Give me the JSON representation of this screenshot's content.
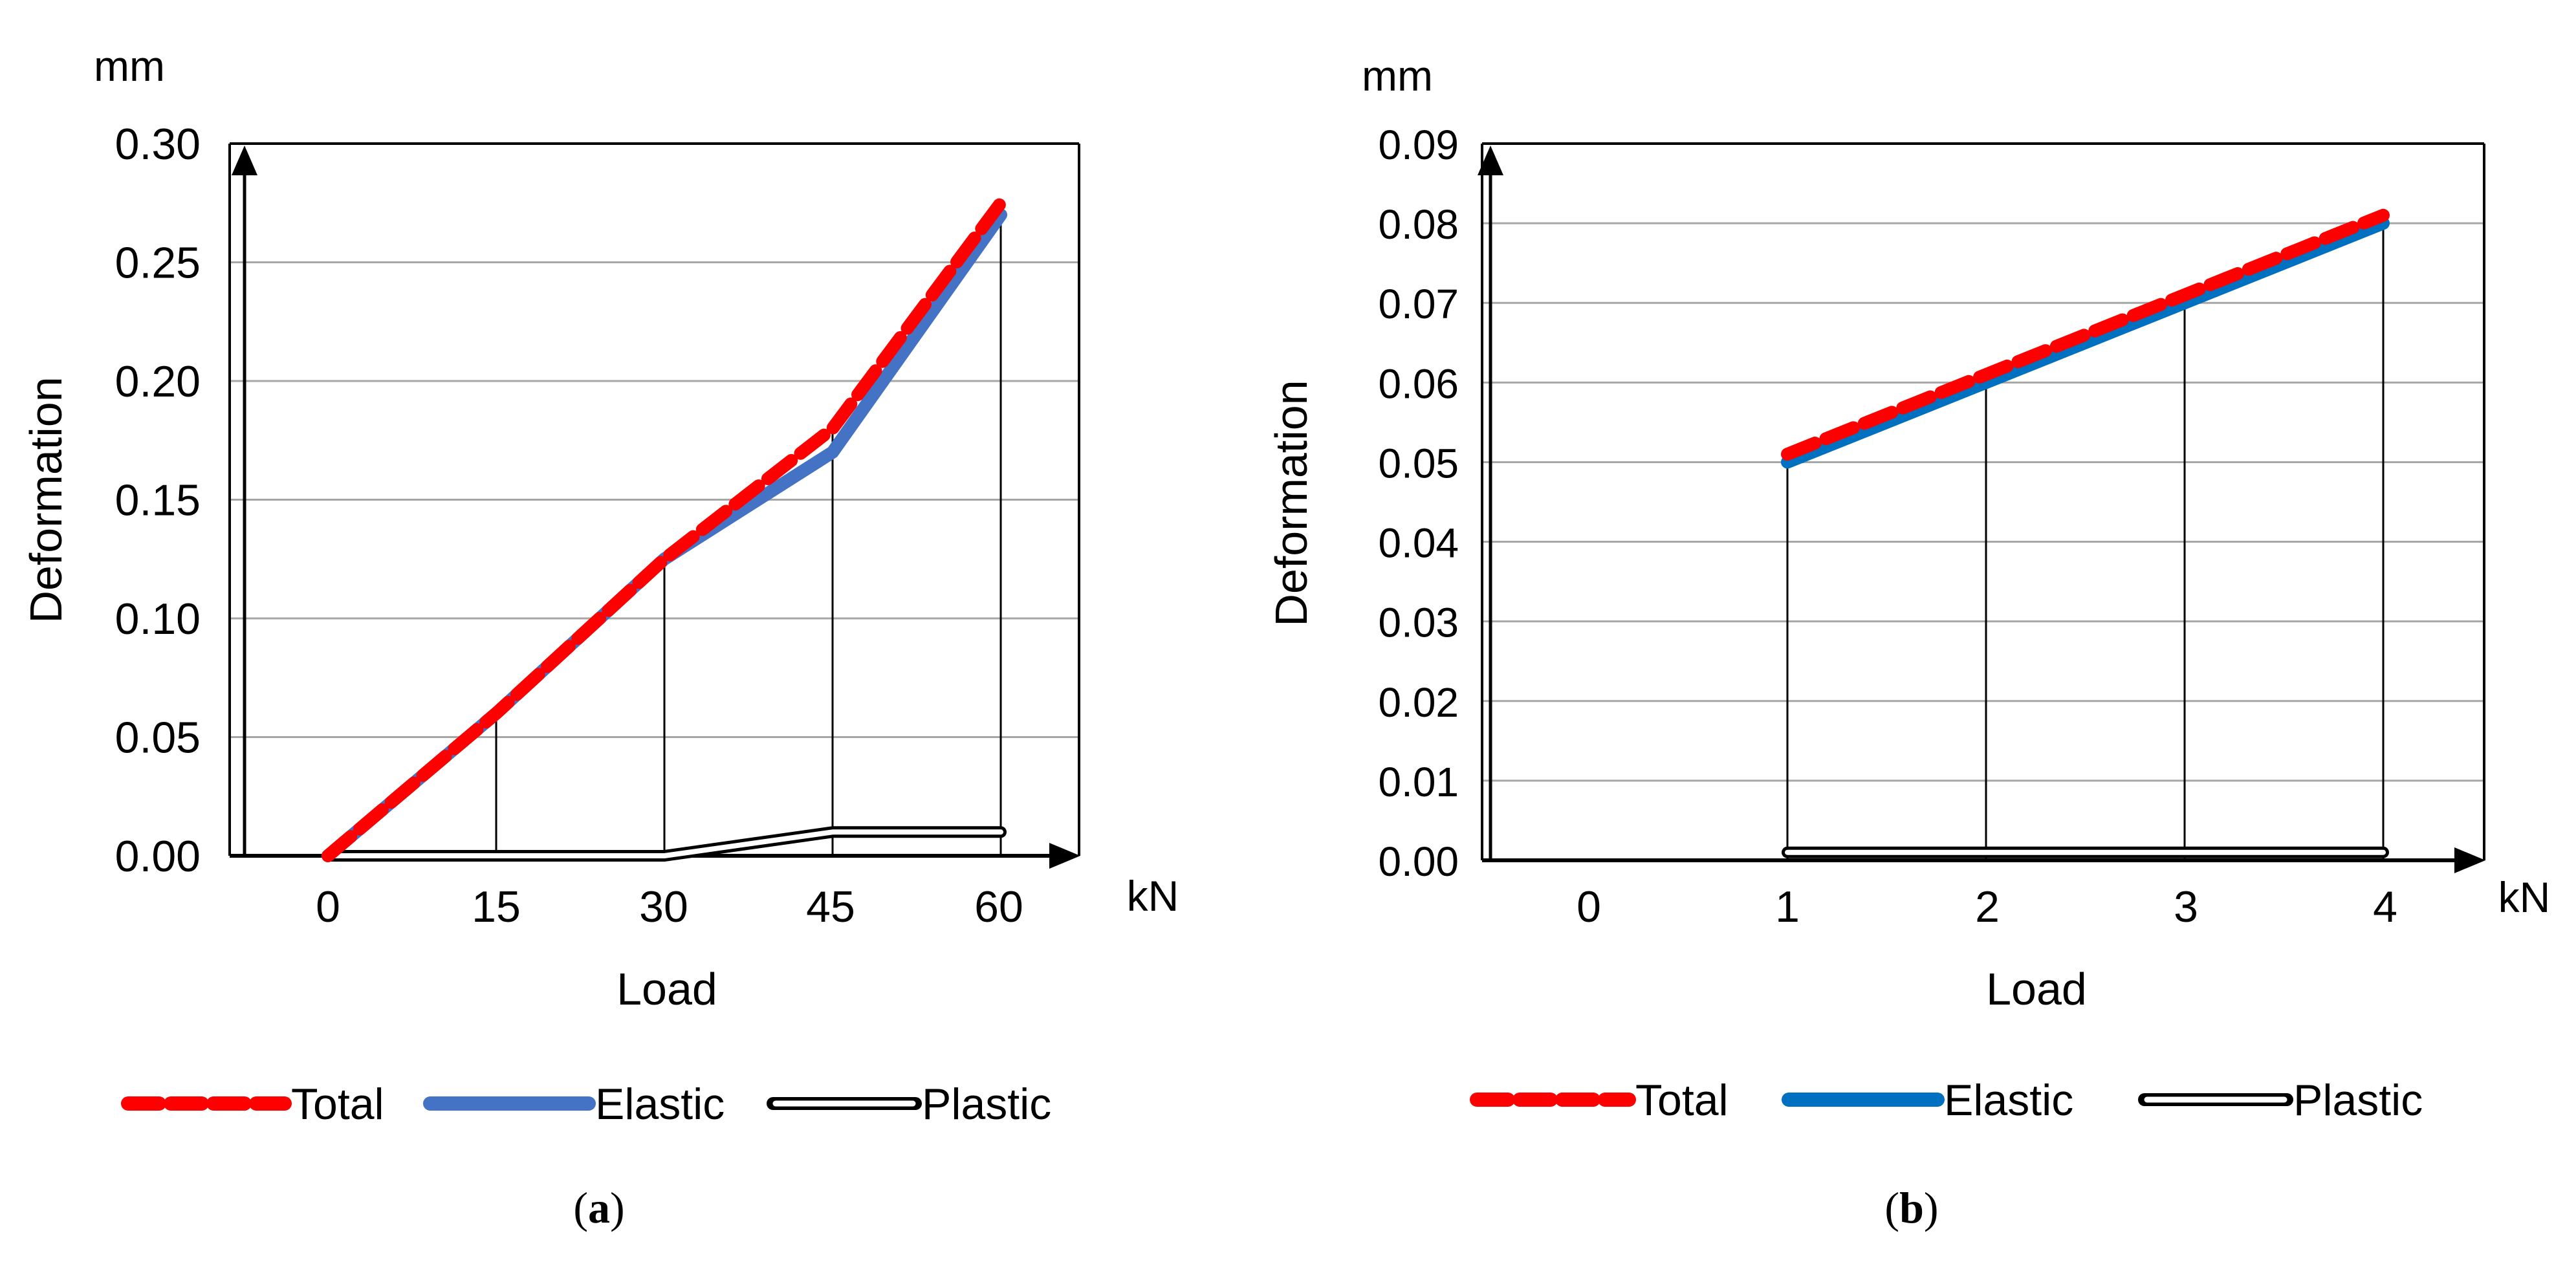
{
  "figure": {
    "captions": [
      {
        "prefix": "(",
        "letter": "a",
        "suffix": ")"
      },
      {
        "prefix": "(",
        "letter": "b",
        "suffix": ")"
      }
    ]
  },
  "chart_data": [
    {
      "type": "line",
      "id": "a",
      "unit_y": "mm",
      "unit_x": "kN",
      "ylabel": "Deformation",
      "xlabel": "Load",
      "categories": [
        "0",
        "15",
        "30",
        "45",
        "60"
      ],
      "ylim": [
        0,
        0.3
      ],
      "yticks": [
        "0.00",
        "0.05",
        "0.10",
        "0.15",
        "0.20",
        "0.25",
        "0.30"
      ],
      "grid": true,
      "drop_lines": true,
      "legend_position": "bottom",
      "series": [
        {
          "name": "Total",
          "style": "dashed",
          "color": "#ff0000",
          "x": [
            0,
            15,
            30,
            45,
            60
          ],
          "values": [
            0.0,
            0.06,
            0.125,
            0.18,
            0.275
          ]
        },
        {
          "name": "Elastic",
          "style": "solid",
          "color": "#4472c4",
          "x": [
            0,
            15,
            30,
            45,
            60
          ],
          "values": [
            0.0,
            0.06,
            0.125,
            0.17,
            0.27
          ]
        },
        {
          "name": "Plastic",
          "style": "double",
          "color": "#000000",
          "x": [
            0,
            15,
            30,
            45,
            60
          ],
          "values": [
            0.0,
            0.0,
            0.0,
            0.01,
            0.01
          ]
        }
      ]
    },
    {
      "type": "line",
      "id": "b",
      "unit_y": "mm",
      "unit_x": "kN",
      "ylabel": "Deformation",
      "xlabel": "Load",
      "categories": [
        "0",
        "1",
        "2",
        "3",
        "4"
      ],
      "ylim": [
        0,
        0.09
      ],
      "yticks": [
        "0.00",
        "0.01",
        "0.02",
        "0.03",
        "0.04",
        "0.05",
        "0.06",
        "0.07",
        "0.08",
        "0.09"
      ],
      "grid": true,
      "drop_lines": true,
      "legend_position": "bottom",
      "series": [
        {
          "name": "Total",
          "style": "dashed",
          "color": "#ff0000",
          "x": [
            1,
            2,
            3,
            4
          ],
          "values": [
            0.051,
            0.061,
            0.071,
            0.081
          ]
        },
        {
          "name": "Elastic",
          "style": "solid",
          "color": "#0070c0",
          "x": [
            1,
            2,
            3,
            4
          ],
          "values": [
            0.05,
            0.06,
            0.07,
            0.08
          ]
        },
        {
          "name": "Plastic",
          "style": "double",
          "color": "#000000",
          "x": [
            1,
            2,
            3,
            4
          ],
          "values": [
            0.001,
            0.001,
            0.001,
            0.001
          ]
        }
      ]
    }
  ]
}
